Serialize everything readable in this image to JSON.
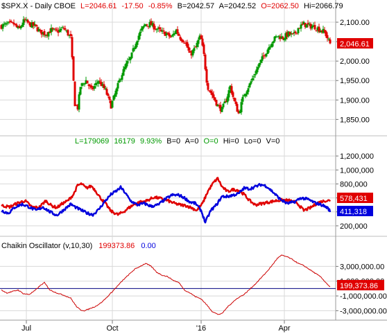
{
  "header": {
    "symbol": "$SPX.X - Daily CBOE",
    "last": "L=2046.61",
    "change": "-17.50",
    "pct": "-0.85%",
    "bid": "B=2042.57",
    "ask": "A=2042.52",
    "open": "O=2062.50",
    "high": "Hi=2066.79"
  },
  "volume_header": {
    "last": "L=179069",
    "chg": "16179",
    "pct": "9.93%",
    "b": "B=0",
    "a": "A=0",
    "o": "O=0",
    "hi": "Hi=0",
    "lo": "Lo=0",
    "v": "V=0"
  },
  "osc_header": {
    "name": "Chaikin Oscillator (v,10,30)",
    "value1": "199373.86",
    "value2": "0.00"
  },
  "price_tag": "2,046.61",
  "vol_tags": [
    "578,431",
    "411,318"
  ],
  "osc_tag": "199,373.86",
  "x_ticks": [
    "Jul",
    "Oct",
    "'16",
    "Apr"
  ],
  "colors": {
    "up": "#009900",
    "down": "#e00000",
    "red_line": "#e00000",
    "blue_line": "#0000dd",
    "osc_line": "#cc0000",
    "zero_line": "#000080",
    "grid": "#d8d8d8"
  },
  "chart_data": [
    {
      "type": "candlestick",
      "y_ticks": [
        "2,100.00",
        "2,050.00",
        "2,000.00",
        "1,950.00",
        "1,900.00",
        "1,850.00"
      ],
      "y_tick_values": [
        2100,
        2050,
        2000,
        1950,
        1900,
        1850
      ],
      "ylim": [
        1815,
        2125
      ],
      "close_anchors": [
        [
          0,
          2090
        ],
        [
          10,
          2095
        ],
        [
          18,
          2095
        ],
        [
          25,
          2080
        ],
        [
          33,
          2105
        ],
        [
          40,
          2095
        ],
        [
          48,
          2090
        ],
        [
          56,
          2075
        ],
        [
          64,
          2070
        ],
        [
          72,
          2080
        ],
        [
          80,
          2075
        ],
        [
          90,
          2085
        ],
        [
          100,
          2060
        ],
        [
          106,
          1890
        ],
        [
          110,
          1880
        ],
        [
          114,
          1935
        ],
        [
          122,
          1950
        ],
        [
          130,
          1925
        ],
        [
          140,
          1950
        ],
        [
          150,
          1925
        ],
        [
          158,
          1885
        ],
        [
          165,
          1920
        ],
        [
          172,
          1960
        ],
        [
          180,
          1990
        ],
        [
          187,
          2010
        ],
        [
          195,
          2055
        ],
        [
          202,
          2080
        ],
        [
          208,
          2095
        ],
        [
          215,
          2095
        ],
        [
          222,
          2085
        ],
        [
          230,
          2075
        ],
        [
          238,
          2070
        ],
        [
          245,
          2060
        ],
        [
          252,
          2080
        ],
        [
          258,
          2060
        ],
        [
          265,
          2050
        ],
        [
          272,
          2015
        ],
        [
          280,
          2035
        ],
        [
          287,
          2065
        ],
        [
          292,
          2015
        ],
        [
          297,
          1935
        ],
        [
          305,
          1910
        ],
        [
          312,
          1885
        ],
        [
          318,
          1875
        ],
        [
          324,
          1900
        ],
        [
          330,
          1935
        ],
        [
          336,
          1895
        ],
        [
          342,
          1865
        ],
        [
          350,
          1915
        ],
        [
          358,
          1940
        ],
        [
          366,
          1970
        ],
        [
          374,
          2000
        ],
        [
          382,
          2025
        ],
        [
          390,
          2050
        ],
        [
          398,
          2065
        ],
        [
          406,
          2060
        ],
        [
          414,
          2070
        ],
        [
          421,
          2065
        ],
        [
          428,
          2085
        ],
        [
          436,
          2095
        ],
        [
          444,
          2090
        ],
        [
          452,
          2088
        ],
        [
          460,
          2080
        ],
        [
          466,
          2075
        ],
        [
          474,
          2045
        ]
      ]
    },
    {
      "type": "line",
      "y_ticks": [
        "1,200,000",
        "1,000,000",
        "800,000",
        "600,000",
        "400,000",
        "200,000"
      ],
      "y_tick_values": [
        1200000,
        1000000,
        800000,
        600000,
        400000,
        200000
      ],
      "ylim": [
        90000,
        1330000
      ],
      "series": [
        {
          "color": "red",
          "anchors": [
            [
              0,
              490000
            ],
            [
              12,
              470000
            ],
            [
              22,
              520000
            ],
            [
              34,
              560000
            ],
            [
              44,
              470000
            ],
            [
              54,
              460000
            ],
            [
              64,
              560000
            ],
            [
              72,
              490000
            ],
            [
              80,
              460000
            ],
            [
              88,
              520000
            ],
            [
              96,
              560000
            ],
            [
              104,
              650000
            ],
            [
              110,
              780000
            ],
            [
              116,
              800000
            ],
            [
              122,
              740000
            ],
            [
              130,
              770000
            ],
            [
              136,
              700000
            ],
            [
              142,
              610000
            ],
            [
              150,
              520000
            ],
            [
              158,
              410000
            ],
            [
              168,
              360000
            ],
            [
              176,
              400000
            ],
            [
              184,
              460000
            ],
            [
              192,
              510000
            ],
            [
              200,
              540000
            ],
            [
              210,
              560000
            ],
            [
              220,
              610000
            ],
            [
              230,
              590000
            ],
            [
              240,
              560000
            ],
            [
              250,
              520000
            ],
            [
              258,
              500000
            ],
            [
              266,
              490000
            ],
            [
              274,
              460000
            ],
            [
              282,
              420000
            ],
            [
              290,
              520000
            ],
            [
              298,
              700000
            ],
            [
              306,
              820000
            ],
            [
              312,
              880000
            ],
            [
              318,
              760000
            ],
            [
              326,
              690000
            ],
            [
              334,
              720000
            ],
            [
              342,
              710000
            ],
            [
              350,
              650000
            ],
            [
              358,
              560000
            ],
            [
              366,
              500000
            ],
            [
              376,
              520000
            ],
            [
              386,
              540000
            ],
            [
              396,
              560000
            ],
            [
              406,
              570000
            ],
            [
              416,
              560000
            ],
            [
              426,
              530000
            ],
            [
              436,
              420000
            ],
            [
              446,
              460000
            ],
            [
              456,
              530000
            ],
            [
              466,
              560000
            ],
            [
              474,
              560000
            ]
          ]
        },
        {
          "color": "blue",
          "anchors": [
            [
              0,
              420000
            ],
            [
              10,
              380000
            ],
            [
              20,
              470000
            ],
            [
              30,
              510000
            ],
            [
              40,
              470000
            ],
            [
              50,
              420000
            ],
            [
              60,
              470000
            ],
            [
              70,
              400000
            ],
            [
              80,
              350000
            ],
            [
              90,
              430000
            ],
            [
              100,
              510000
            ],
            [
              108,
              460000
            ],
            [
              116,
              420000
            ],
            [
              124,
              380000
            ],
            [
              132,
              360000
            ],
            [
              140,
              430000
            ],
            [
              150,
              560000
            ],
            [
              158,
              650000
            ],
            [
              166,
              700000
            ],
            [
              172,
              750000
            ],
            [
              178,
              680000
            ],
            [
              186,
              560000
            ],
            [
              196,
              500000
            ],
            [
              206,
              520000
            ],
            [
              216,
              480000
            ],
            [
              226,
              500000
            ],
            [
              236,
              580000
            ],
            [
              246,
              640000
            ],
            [
              256,
              640000
            ],
            [
              264,
              600000
            ],
            [
              272,
              540000
            ],
            [
              280,
              520000
            ],
            [
              288,
              420000
            ],
            [
              294,
              250000
            ],
            [
              302,
              420000
            ],
            [
              310,
              500000
            ],
            [
              318,
              620000
            ],
            [
              326,
              620000
            ],
            [
              334,
              640000
            ],
            [
              342,
              660000
            ],
            [
              350,
              740000
            ],
            [
              358,
              730000
            ],
            [
              366,
              760000
            ],
            [
              374,
              790000
            ],
            [
              382,
              770000
            ],
            [
              392,
              680000
            ],
            [
              402,
              580000
            ],
            [
              412,
              520000
            ],
            [
              422,
              540000
            ],
            [
              432,
              600000
            ],
            [
              442,
              580000
            ],
            [
              452,
              530000
            ],
            [
              462,
              500000
            ],
            [
              470,
              460000
            ],
            [
              474,
              410000
            ]
          ]
        }
      ]
    },
    {
      "type": "line",
      "y_ticks": [
        "3,000,000.00",
        "1,000,000.00",
        "-1,000,000.00",
        "-3,000,000.00"
      ],
      "y_tick_values": [
        3000000,
        1000000,
        -1000000,
        -3000000
      ],
      "ylim": [
        -3900000,
        5100000
      ],
      "zero_line": 0,
      "anchors": [
        [
          0,
          -200000
        ],
        [
          8,
          -600000
        ],
        [
          16,
          -400000
        ],
        [
          24,
          -200000
        ],
        [
          32,
          -700000
        ],
        [
          40,
          -800000
        ],
        [
          48,
          -300000
        ],
        [
          56,
          400000
        ],
        [
          62,
          800000
        ],
        [
          70,
          -200000
        ],
        [
          80,
          -600000
        ],
        [
          90,
          -900000
        ],
        [
          100,
          -1300000
        ],
        [
          108,
          -2400000
        ],
        [
          114,
          -2900000
        ],
        [
          120,
          -3000000
        ],
        [
          128,
          -2700000
        ],
        [
          136,
          -2400000
        ],
        [
          144,
          -1900000
        ],
        [
          152,
          -1200000
        ],
        [
          160,
          -400000
        ],
        [
          168,
          400000
        ],
        [
          176,
          1200000
        ],
        [
          184,
          1900000
        ],
        [
          192,
          2600000
        ],
        [
          200,
          3000000
        ],
        [
          208,
          3400000
        ],
        [
          216,
          3000000
        ],
        [
          224,
          2200000
        ],
        [
          232,
          1800000
        ],
        [
          240,
          1600000
        ],
        [
          248,
          1100000
        ],
        [
          256,
          800000
        ],
        [
          264,
          -200000
        ],
        [
          272,
          -600000
        ],
        [
          280,
          -1100000
        ],
        [
          288,
          -1400000
        ],
        [
          296,
          -2200000
        ],
        [
          304,
          -3100000
        ],
        [
          312,
          -3500000
        ],
        [
          318,
          -3400000
        ],
        [
          326,
          -2500000
        ],
        [
          334,
          -1800000
        ],
        [
          342,
          -1200000
        ],
        [
          350,
          -800000
        ],
        [
          358,
          -100000
        ],
        [
          366,
          600000
        ],
        [
          374,
          1400000
        ],
        [
          382,
          2200000
        ],
        [
          390,
          3100000
        ],
        [
          398,
          4100000
        ],
        [
          404,
          4500000
        ],
        [
          412,
          4300000
        ],
        [
          420,
          3900000
        ],
        [
          428,
          3400000
        ],
        [
          436,
          3100000
        ],
        [
          444,
          2600000
        ],
        [
          452,
          2100000
        ],
        [
          460,
          1600000
        ],
        [
          466,
          1000000
        ],
        [
          472,
          400000
        ],
        [
          474,
          200000
        ]
      ]
    }
  ]
}
